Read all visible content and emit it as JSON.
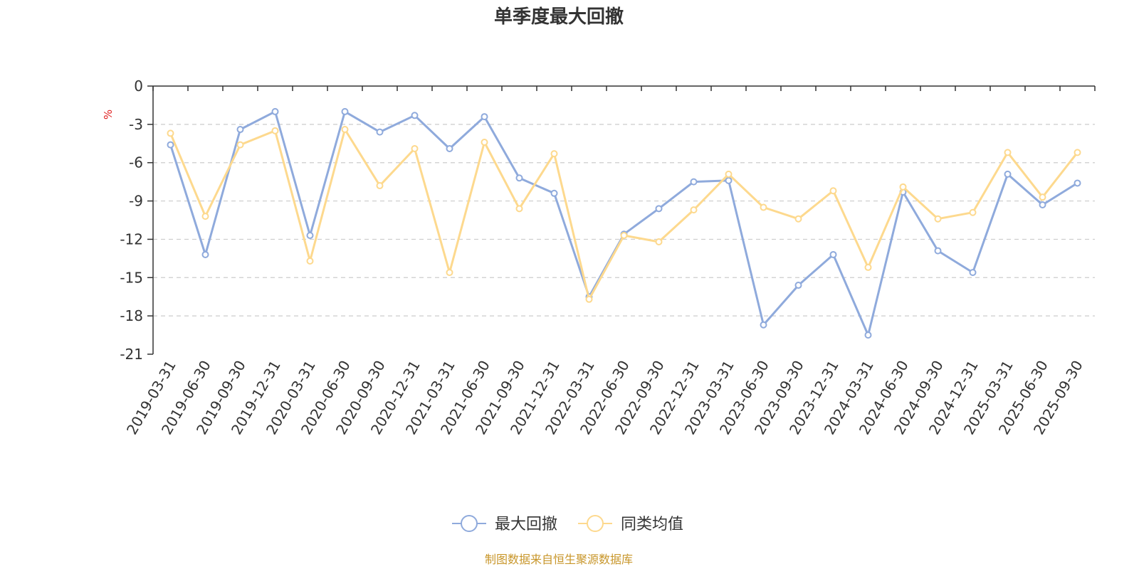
{
  "chart_data": {
    "type": "line",
    "title": "单季度最大回撤",
    "ylabel": "%",
    "xlabel": "",
    "ylim": [
      -21,
      0
    ],
    "yticks": [
      0,
      -3,
      -6,
      -9,
      -12,
      -15,
      -18,
      -21
    ],
    "grid": true,
    "legend_position": "bottom",
    "categories": [
      "2019-03-31",
      "2019-06-30",
      "2019-09-30",
      "2019-12-31",
      "2020-03-31",
      "2020-06-30",
      "2020-09-30",
      "2020-12-31",
      "2021-03-31",
      "2021-06-30",
      "2021-09-30",
      "2021-12-31",
      "2022-03-31",
      "2022-06-30",
      "2022-09-30",
      "2022-12-31",
      "2023-03-31",
      "2023-06-30",
      "2023-09-30",
      "2023-12-31",
      "2024-03-31",
      "2024-06-30",
      "2024-09-30",
      "2024-12-31",
      "2025-03-31",
      "2025-06-30",
      "2025-09-30"
    ],
    "series": [
      {
        "name": "最大回撤",
        "color": "#8faadc",
        "values": [
          -4.6,
          -13.2,
          -3.4,
          -2.0,
          -11.7,
          -2.0,
          -3.6,
          -2.3,
          -4.9,
          -2.4,
          -7.2,
          -8.4,
          -16.5,
          -11.6,
          -9.6,
          -7.5,
          -7.4,
          -18.7,
          -15.6,
          -13.2,
          -19.5,
          -8.3,
          -12.9,
          -14.6,
          -6.9,
          -9.3,
          -7.6
        ]
      },
      {
        "name": "同类均值",
        "color": "#fdd98e",
        "values": [
          -3.7,
          -10.2,
          -4.6,
          -3.5,
          -13.7,
          -3.4,
          -7.8,
          -4.9,
          -14.6,
          -4.4,
          -9.6,
          -5.3,
          -16.7,
          -11.7,
          -12.2,
          -9.7,
          -6.9,
          -9.5,
          -10.4,
          -8.2,
          -14.2,
          -7.9,
          -10.4,
          -9.9,
          -5.2,
          -8.7,
          -5.2
        ]
      }
    ],
    "source": "制图数据来自恒生聚源数据库"
  }
}
